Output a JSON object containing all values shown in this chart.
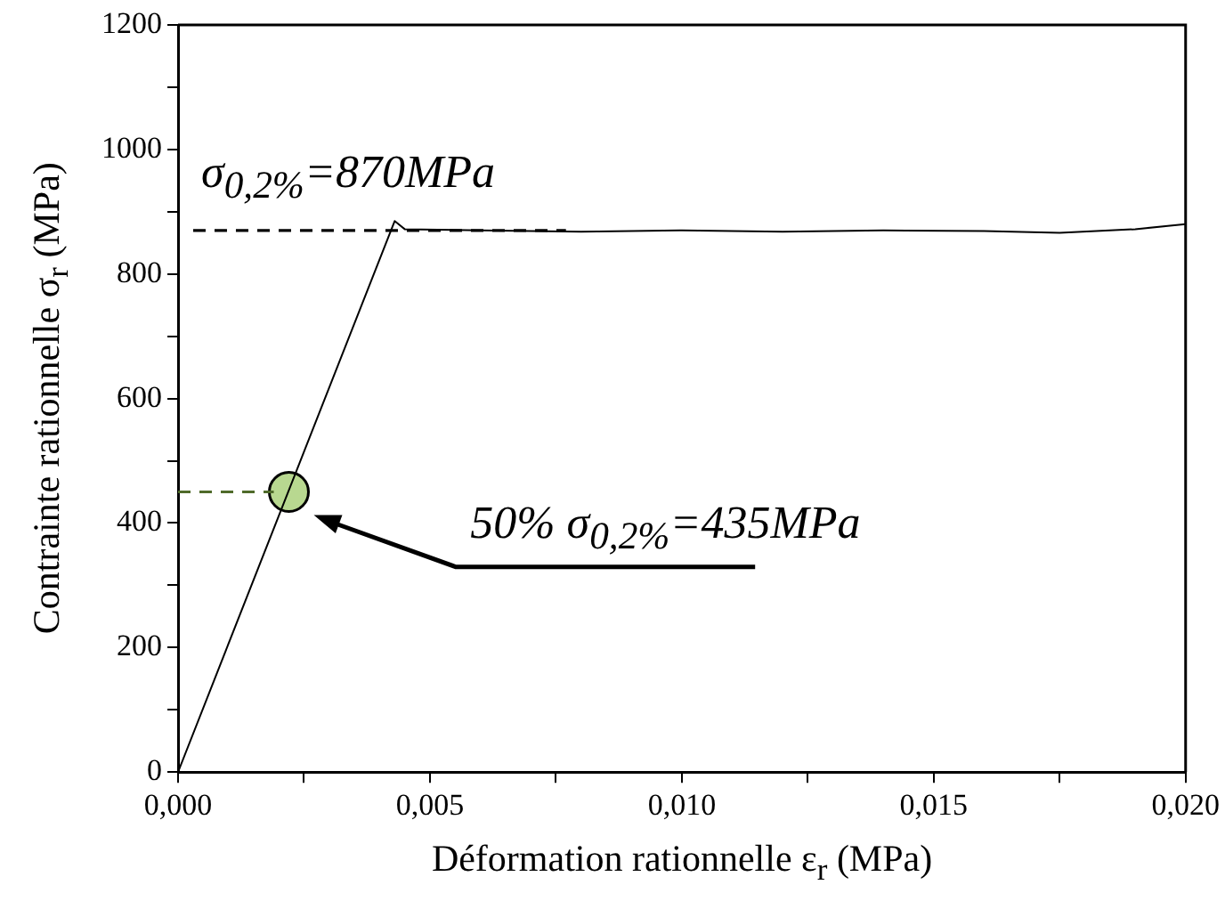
{
  "chart_data": {
    "type": "line",
    "xlabel": "Déformation rationnelle ε$_{r}$ (MPa)",
    "ylabel": "Contrainte rationnelle σ$_{r}$ (MPa)",
    "xlim": [
      0,
      0.02
    ],
    "xticks": [
      {
        "value": 0,
        "label": "0,000"
      },
      {
        "value": 0.0025,
        "label": null
      },
      {
        "value": 0.005,
        "label": "0,005"
      },
      {
        "value": 0.0075,
        "label": null
      },
      {
        "value": 0.01,
        "label": "0,010"
      },
      {
        "value": 0.0125,
        "label": null
      },
      {
        "value": 0.015,
        "label": "0,015"
      },
      {
        "value": 0.0175,
        "label": null
      },
      {
        "value": 0.02,
        "label": "0,020"
      }
    ],
    "ylim": [
      0,
      1200
    ],
    "yticks": [
      0,
      {
        "value": 100,
        "label": null
      },
      200,
      {
        "value": 300,
        "label": null
      },
      400,
      {
        "value": 500,
        "label": null
      },
      600,
      {
        "value": 700,
        "label": null
      },
      800,
      {
        "value": 900,
        "label": null
      },
      1000,
      {
        "value": 1100,
        "label": null
      },
      1200
    ],
    "grid": false,
    "legend": false,
    "series": [
      {
        "color": "#000000",
        "line_style": "solid",
        "marker": "none",
        "x": [
          0,
          0.0043,
          0.0045,
          0.006,
          0.008,
          0.01,
          0.012,
          0.014,
          0.016,
          0.0175,
          0.019,
          0.02
        ],
        "values": [
          0,
          885,
          872,
          870,
          868,
          870,
          868,
          870,
          869,
          866,
          872,
          880
        ]
      },
      {
        "color": "#000000",
        "line_style": "dashed",
        "marker": "none",
        "x": [
          0.0003,
          0.0077
        ],
        "values": [
          870,
          870
        ]
      },
      {
        "color": "#4f6b2a",
        "line_style": "dashed",
        "marker": "none",
        "x": [
          0,
          0.0019
        ],
        "values": [
          450,
          450
        ]
      },
      {
        "type": "scatter",
        "color": "#b8d890",
        "marker": "circle",
        "x": [
          0.0022
        ],
        "values": [
          450
        ]
      }
    ],
    "annotations": [
      "σ$_{0,2%}$=870MPa",
      "50% σ$_{0,2%}$=435MPa"
    ]
  }
}
